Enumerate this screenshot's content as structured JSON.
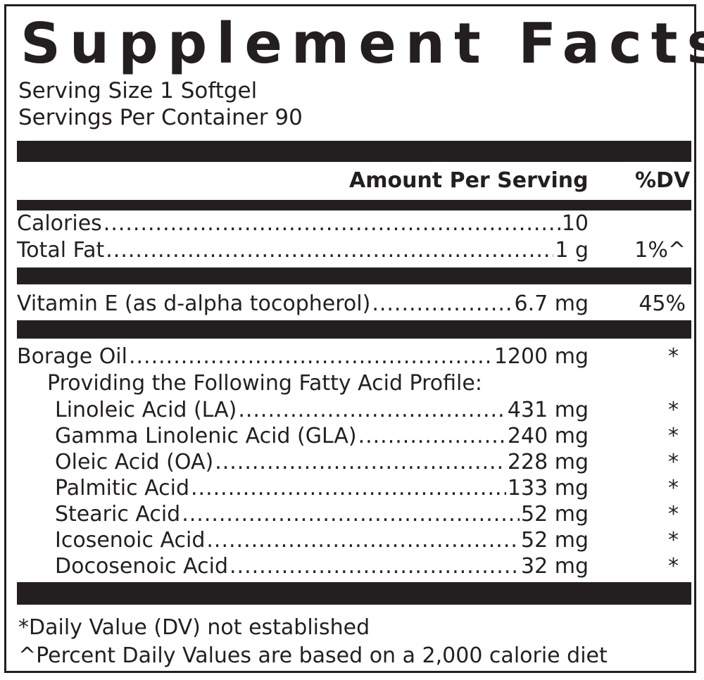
{
  "title": "Supplement Facts",
  "serving_size": "Serving Size 1 Softgel",
  "servings_per_container": "Servings Per Container 90",
  "header": {
    "amount": "Amount Per Serving",
    "dv": "%DV"
  },
  "section1": [
    {
      "name": "Calories",
      "amount": "10",
      "dv": ""
    },
    {
      "name": "Total Fat",
      "amount": "1 g",
      "dv": "1%^"
    }
  ],
  "section2": [
    {
      "name": "Vitamin E (as d-alpha tocopherol) ",
      "amount": "6.7 mg",
      "dv": "45%"
    }
  ],
  "borage": {
    "name": "Borage Oil ",
    "amount": "1200 mg",
    "dv": "*"
  },
  "profile_label": "Providing the Following Fatty Acid Profile:",
  "fatty_acids": [
    {
      "name": "Linoleic Acid (LA) ",
      "amount": "431 mg",
      "dv": "*"
    },
    {
      "name": "Gamma Linolenic Acid (GLA) ",
      "amount": "240 mg",
      "dv": "*"
    },
    {
      "name": "Oleic Acid (OA)",
      "amount": "228 mg",
      "dv": "*"
    },
    {
      "name": "Palmitic Acid ",
      "amount": "133 mg",
      "dv": "*"
    },
    {
      "name": "Stearic Acid ",
      "amount": "52 mg",
      "dv": "*"
    },
    {
      "name": "Icosenoic Acid ",
      "amount": "52 mg",
      "dv": "*"
    },
    {
      "name": "Docosenoic Acid ",
      "amount": "32 mg",
      "dv": "*"
    }
  ],
  "footnotes": [
    "*Daily Value (DV) not established",
    "^Percent Daily Values are based on a 2,000 calorie diet"
  ]
}
